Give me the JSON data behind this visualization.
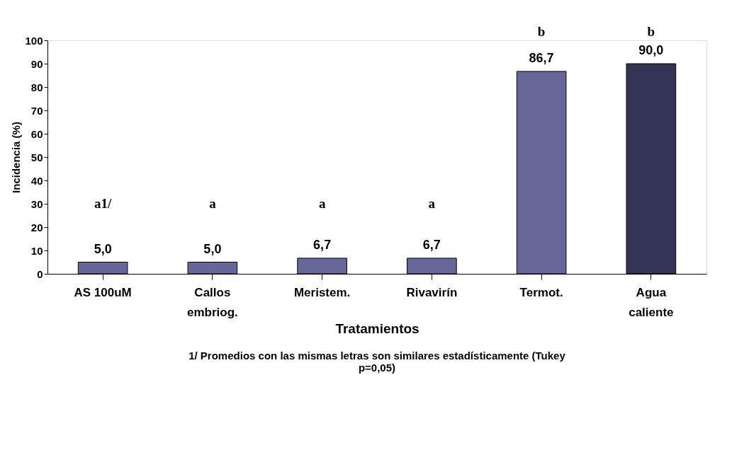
{
  "chart_data": {
    "type": "bar",
    "xlabel": "Tratamientos",
    "ylabel": "Incidencia (%)",
    "categories": [
      "AS 100uM",
      "Callos embriog.",
      "Meristem.",
      "Rivavirín",
      "Termot.",
      "Agua caliente"
    ],
    "values": [
      5.0,
      5.0,
      6.7,
      6.7,
      86.7,
      90.0
    ],
    "value_labels": [
      "5,0",
      "5,0",
      "6,7",
      "6,7",
      "86,7",
      "90,0"
    ],
    "colors": [
      "#666699",
      "#666699",
      "#666699",
      "#666699",
      "#666699",
      "#333355"
    ],
    "ylim": [
      0,
      100
    ],
    "yticks": [
      0,
      10,
      20,
      30,
      40,
      50,
      60,
      70,
      80,
      90,
      100
    ],
    "grid": false,
    "annotations": [
      "a1/",
      "a",
      "a",
      "a",
      "b",
      "b",
      "1/ Promedios con las mismas letras son similares estadísticamente (Tukey p=0,05)"
    ]
  }
}
